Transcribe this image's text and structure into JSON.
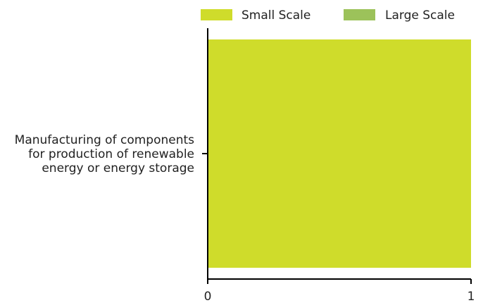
{
  "chart_data": {
    "type": "bar",
    "orientation": "horizontal",
    "stacked": true,
    "title": "",
    "xlabel": "",
    "ylabel": "",
    "categories": [
      "Manufacturing of components for production of renewable energy or energy storage"
    ],
    "category_label_lines": [
      [
        "Manufacturing of components",
        "for production of renewable",
        "energy or energy storage"
      ]
    ],
    "series": [
      {
        "name": "Small Scale",
        "values": [
          1
        ],
        "color": "#cfdc2b"
      },
      {
        "name": "Large Scale",
        "values": [
          0
        ],
        "color": "#9cc25a"
      }
    ],
    "xlim": [
      0,
      1
    ],
    "xticks": [
      0,
      1
    ],
    "xtick_labels": [
      "0",
      "1"
    ],
    "grid": false,
    "legend": {
      "position": "top-right",
      "orientation": "horizontal"
    }
  }
}
